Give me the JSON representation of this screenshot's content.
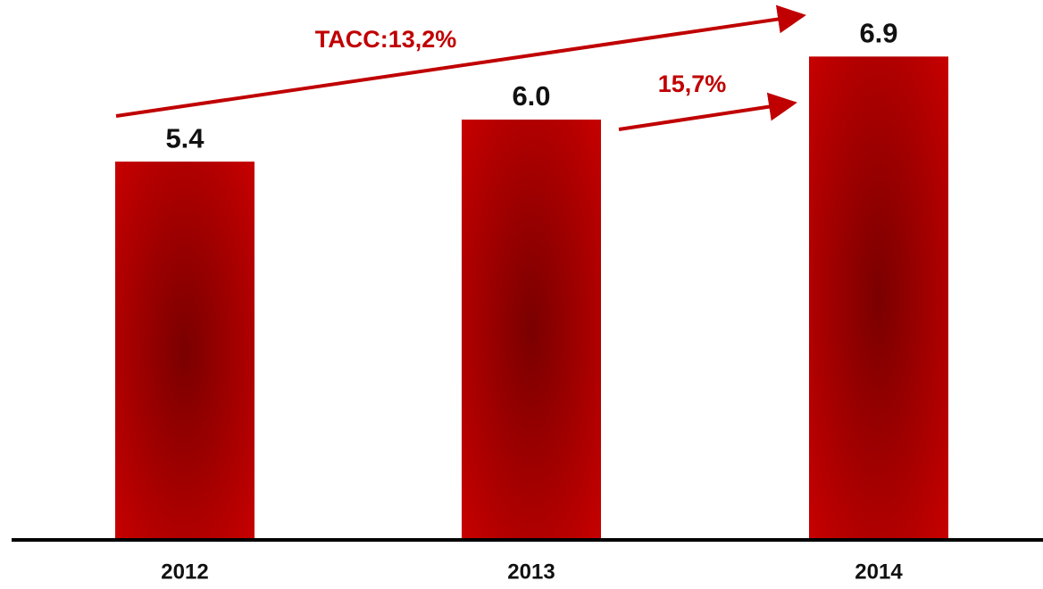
{
  "chart_data": {
    "type": "bar",
    "categories": [
      "2012",
      "2013",
      "2014"
    ],
    "values": [
      5.4,
      6.0,
      6.9
    ],
    "value_labels": [
      "5.4",
      "6.0",
      "6.9"
    ],
    "color": "#c00000",
    "ylim": [
      0,
      7
    ],
    "annotations": [
      {
        "text": "TACC:13,2%"
      },
      {
        "text": "15,7%"
      }
    ]
  }
}
